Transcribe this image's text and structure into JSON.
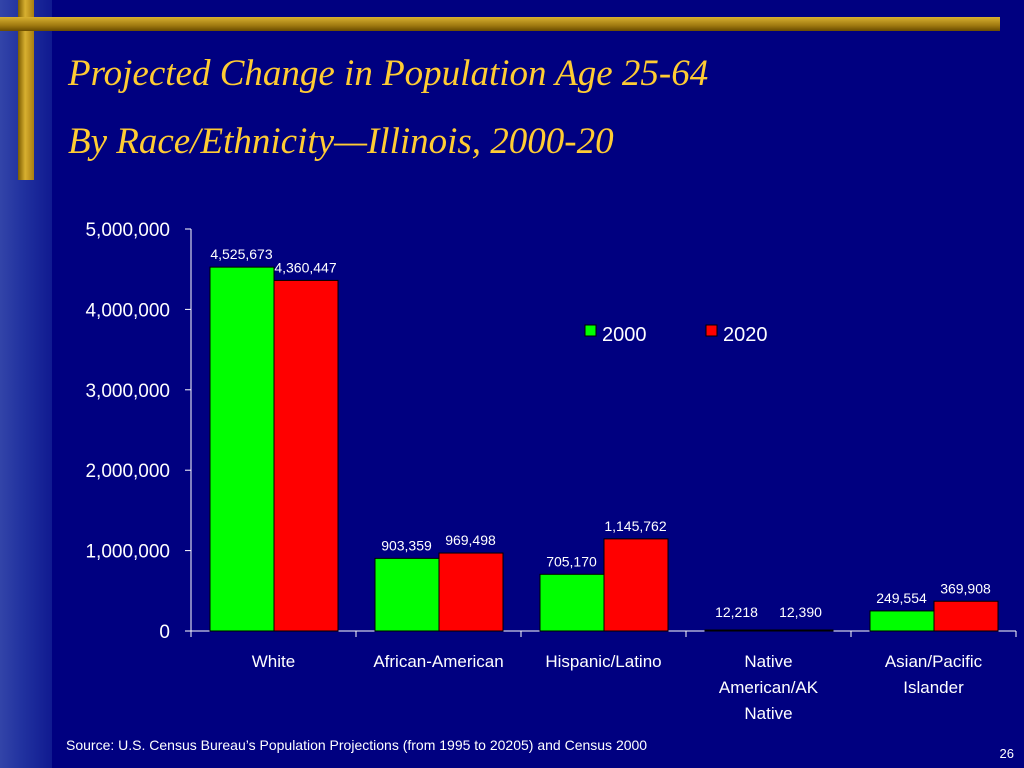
{
  "slide": {
    "title_line1": "Projected Change in Population Age 25-64",
    "title_line2": "By Race/Ethnicity—Illinois, 2000-20",
    "source": "Source:  U.S. Census Bureau’s Population Projections (from 1995 to 20205) and Census 2000",
    "page_number": "26"
  },
  "colors": {
    "background": "#000080",
    "title": "#ffcc33",
    "series_2000": "#00ff00",
    "series_2020": "#ff0000",
    "text": "#ffffff"
  },
  "chart_data": {
    "type": "bar",
    "categories": [
      [
        "White"
      ],
      [
        "African-American"
      ],
      [
        "Hispanic/Latino"
      ],
      [
        "Native",
        "American/AK",
        "Native"
      ],
      [
        "Asian/Pacific",
        "Islander"
      ]
    ],
    "series": [
      {
        "name": "2000",
        "color": "#00ff00",
        "values": [
          4525673,
          903359,
          705170,
          12218,
          249554
        ],
        "labels": [
          "4,525,673",
          "903,359",
          "705,170",
          "12,218",
          "249,554"
        ]
      },
      {
        "name": "2020",
        "color": "#ff0000",
        "values": [
          4360447,
          969498,
          1145762,
          12390,
          369908
        ],
        "labels": [
          "4,360,447",
          "969,498",
          "1,145,762",
          "12,390",
          "369,908"
        ]
      }
    ],
    "yticks": [
      0,
      1000000,
      2000000,
      3000000,
      4000000,
      5000000
    ],
    "ytick_labels": [
      "0",
      "1,000,000",
      "2,000,000",
      "3,000,000",
      "4,000,000",
      "5,000,000"
    ],
    "ylim": [
      0,
      5000000
    ],
    "legend_position": "upper-right",
    "grid": false
  }
}
